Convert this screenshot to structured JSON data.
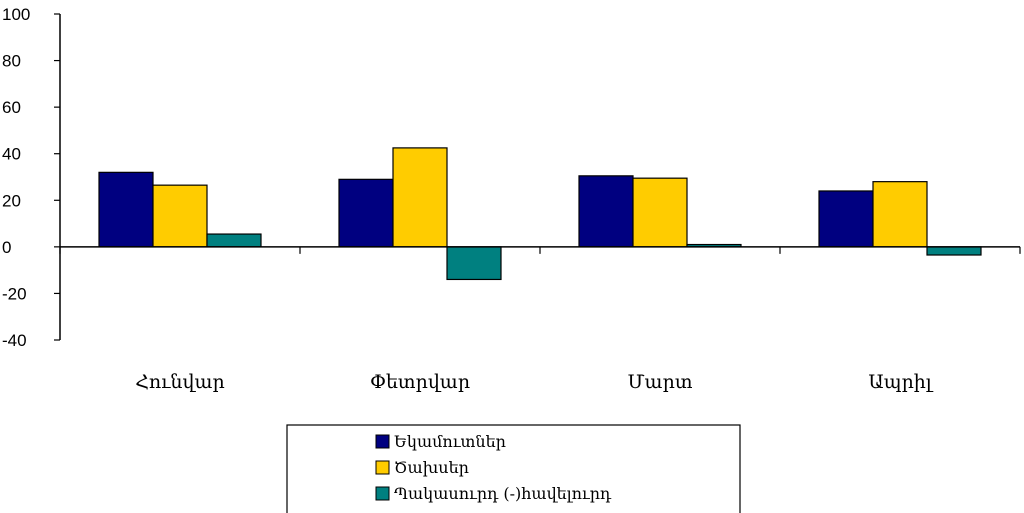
{
  "chart_data": {
    "type": "bar",
    "categories": [
      "Հունվար",
      "Փետրվար",
      "Մարտ",
      "Ապրիլ"
    ],
    "series": [
      {
        "name": "Եկամուտներ",
        "values": [
          32,
          29,
          30.5,
          24
        ],
        "color": "#000080"
      },
      {
        "name": "Ծախսեր",
        "values": [
          26.5,
          42.5,
          29.5,
          28
        ],
        "color": "#FFCC00"
      },
      {
        "name": "Պակասուրդ (-)հավելուրդ",
        "values": [
          5.5,
          -14,
          1,
          -3.5
        ],
        "color": "#008080"
      }
    ],
    "ylim": [
      -40,
      100
    ],
    "yticks": [
      "100",
      "80",
      "60",
      "40",
      "20",
      "0",
      "-20",
      "-40"
    ],
    "grid": false,
    "legend_position": "bottom-center"
  }
}
